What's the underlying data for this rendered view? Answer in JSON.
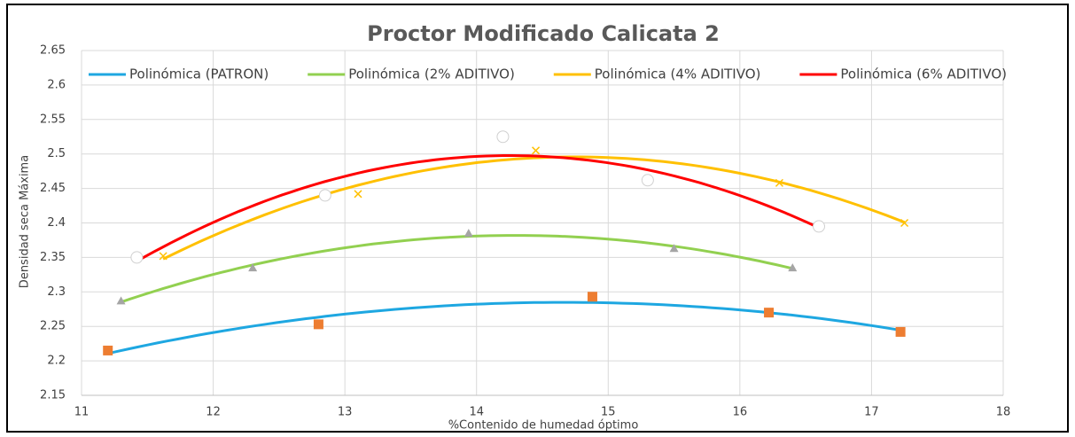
{
  "chart_data": {
    "type": "scatter",
    "title": "Proctor Modificado Calicata 2",
    "x_label": "%Contenido de humedad óptimo",
    "y_label": "Densidad seca Máxima",
    "xlim": [
      11,
      18
    ],
    "xticks": [
      11,
      12,
      13,
      14,
      15,
      16,
      17,
      18
    ],
    "ylim": [
      2.15,
      2.65
    ],
    "yticks": [
      2.15,
      2.2,
      2.25,
      2.3,
      2.35,
      2.4,
      2.45,
      2.5,
      2.55,
      2.6,
      2.65
    ],
    "grid": true,
    "legend": "top",
    "trendline": "polynomial",
    "trendline_order": 2,
    "series": [
      {
        "name": "Polinómica (PATRON)",
        "color": "#1ea7e1",
        "marker": "square",
        "marker_color": "#ed7d31",
        "x": [
          11.2,
          12.8,
          14.88,
          16.22,
          17.22
        ],
        "values": [
          2.215,
          2.253,
          2.293,
          2.27,
          2.242
        ]
      },
      {
        "name": "Polinómica (2% ADITIVO)",
        "color": "#92d050",
        "marker": "triangle",
        "marker_color": "#a5a5a5",
        "x": [
          11.3,
          12.3,
          13.94,
          15.5,
          16.4
        ],
        "values": [
          2.287,
          2.335,
          2.385,
          2.363,
          2.335
        ]
      },
      {
        "name": "Polinómica (4% ADITIVO)",
        "color": "#ffc000",
        "marker": "x",
        "marker_color": "#ffc000",
        "x": [
          11.62,
          13.1,
          14.45,
          16.3,
          17.25
        ],
        "values": [
          2.352,
          2.442,
          2.505,
          2.458,
          2.4
        ]
      },
      {
        "name": "Polinómica (6% ADITIVO)",
        "color": "#ff0000",
        "marker": "circle",
        "marker_color": "#ffffff",
        "x": [
          11.42,
          12.85,
          14.2,
          15.3,
          16.6
        ],
        "values": [
          2.35,
          2.44,
          2.525,
          2.462,
          2.395
        ]
      }
    ]
  }
}
